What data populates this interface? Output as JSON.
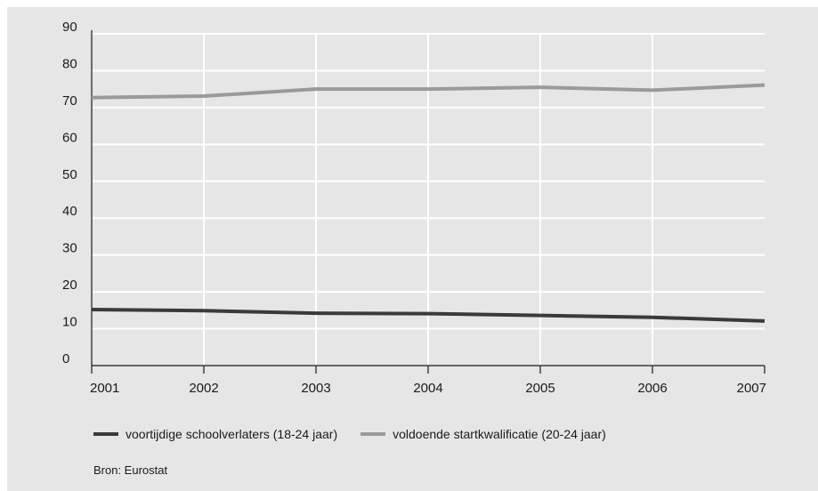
{
  "chart_data": {
    "type": "line",
    "x": [
      "2001",
      "2002",
      "2003",
      "2004",
      "2005",
      "2006",
      "2007"
    ],
    "yticks": [
      "0",
      "10",
      "20",
      "30",
      "40",
      "50",
      "60",
      "70",
      "80",
      "90"
    ],
    "ylim": [
      0,
      90
    ],
    "grid": true,
    "legend_position": "bottom-left",
    "series": [
      {
        "name": "voortijdige schoolverlaters (18-24 jaar)",
        "color": "#3a3a3a",
        "values": [
          15.2,
          14.9,
          14.2,
          14.1,
          13.6,
          13.1,
          12.1
        ]
      },
      {
        "name": "voldoende startkwalificatie (20-24 jaar)",
        "color": "#9a9a9a",
        "values": [
          72.7,
          73.1,
          75.0,
          75.0,
          75.5,
          74.7,
          76.1
        ]
      }
    ]
  },
  "source_text": "Bron: Eurostat"
}
